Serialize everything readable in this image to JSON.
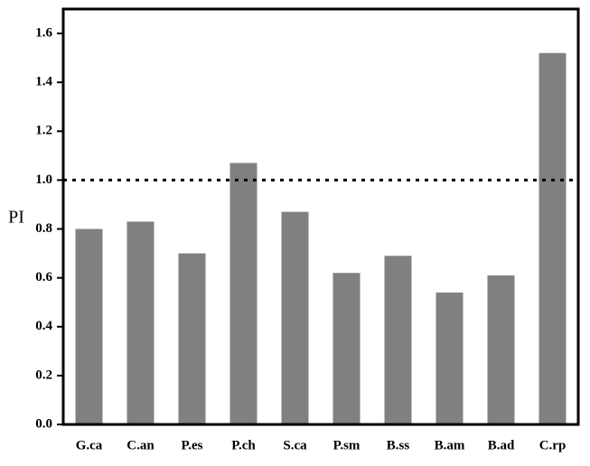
{
  "chart_data": {
    "type": "bar",
    "y_label": "PI",
    "categories": [
      "G.ca",
      "C.an",
      "P.es",
      "P.ch",
      "S.ca",
      "P.sm",
      "B.ss",
      "B.am",
      "B.ad",
      "C.rp"
    ],
    "values": [
      0.8,
      0.83,
      0.7,
      1.07,
      0.87,
      0.62,
      0.69,
      0.54,
      0.61,
      1.52
    ],
    "color": "#808080",
    "ylim": [
      0,
      1.7
    ],
    "yticks": [
      {
        "value": 0,
        "label": "0.0"
      },
      0.2,
      0.4,
      0.6,
      0.8,
      {
        "value": 1,
        "label": "1.0"
      },
      1.2,
      1.4,
      1.6
    ],
    "reference_line": 1
  }
}
